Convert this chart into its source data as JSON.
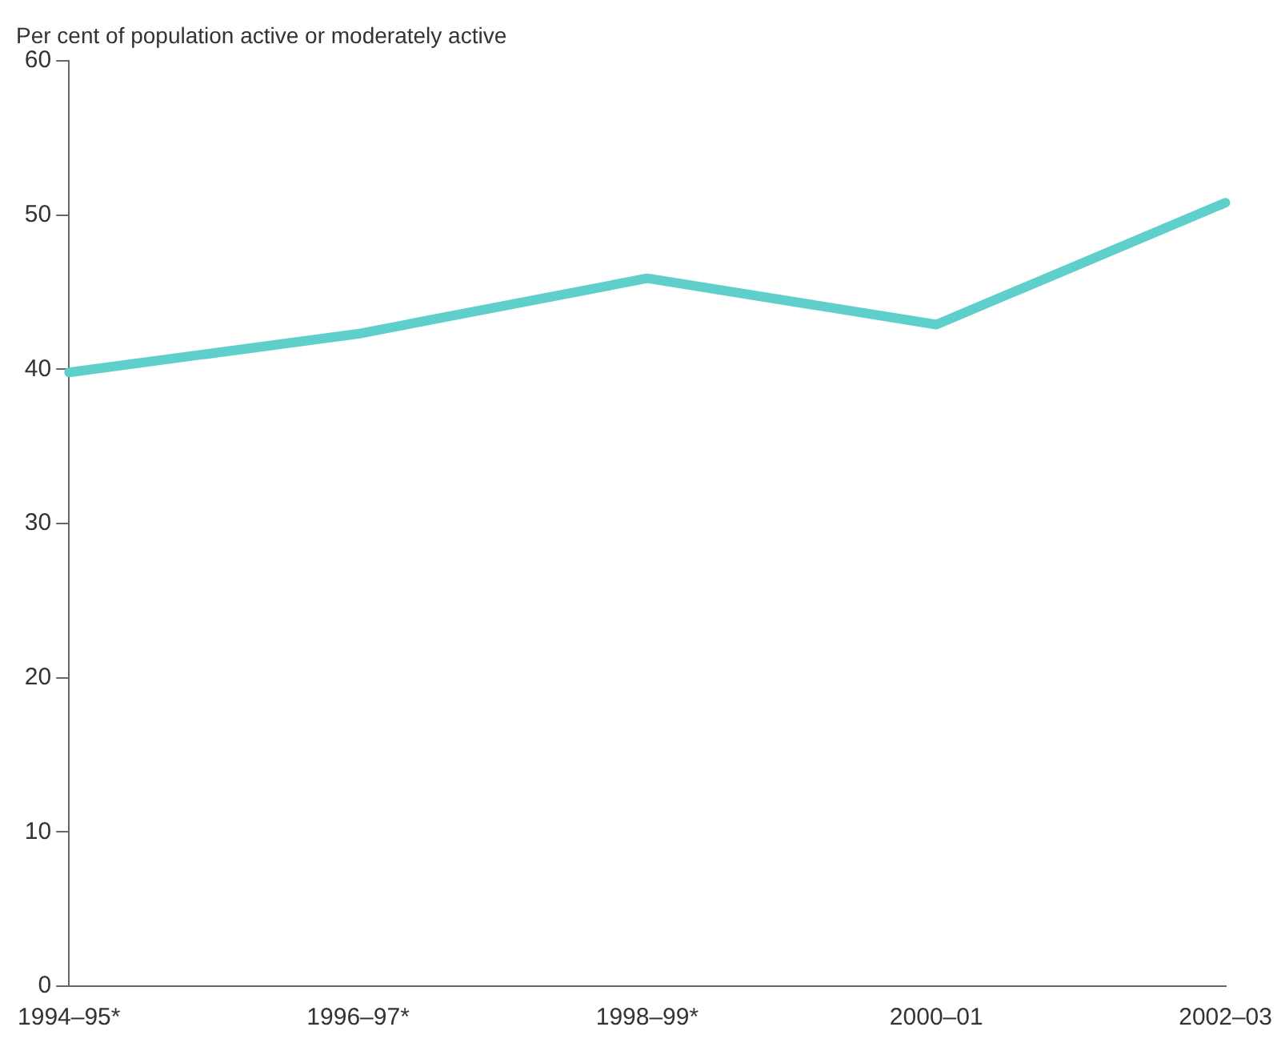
{
  "chart_data": {
    "type": "line",
    "ylabel": "Per cent of population active or moderately active",
    "categories": [
      "1994–95*",
      "1996–97*",
      "1998–99*",
      "2000–01",
      "2002–03"
    ],
    "series": [
      {
        "color": "#5ecfca",
        "values": [
          39.8,
          42.3,
          45.9,
          42.9,
          50.8
        ]
      }
    ],
    "ylim": [
      0,
      60
    ],
    "yticks": [
      0,
      10,
      20,
      30,
      40,
      50,
      60
    ],
    "grid": false,
    "legend": false,
    "marker": "none",
    "line_style": "solid"
  }
}
